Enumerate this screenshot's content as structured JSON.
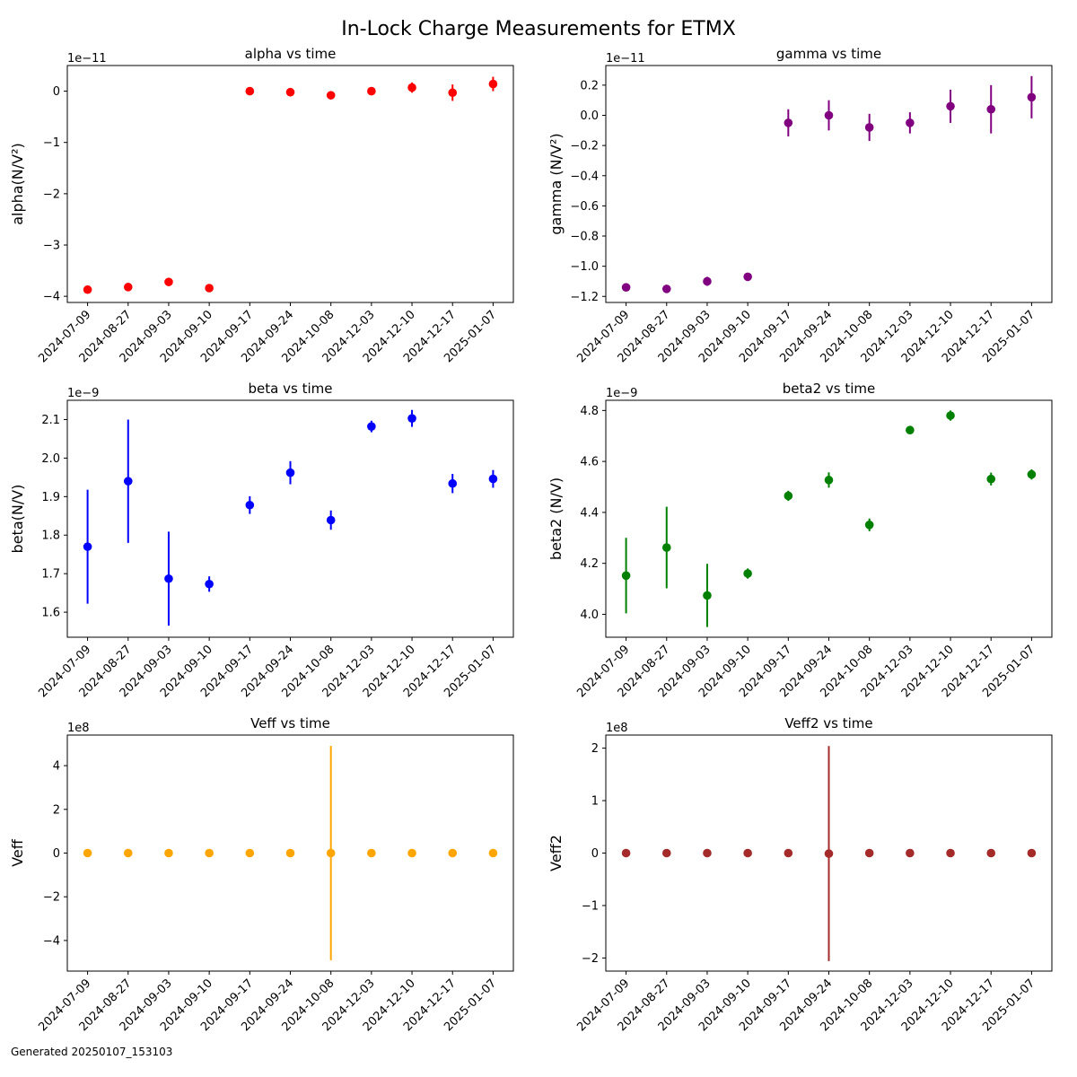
{
  "figure": {
    "title": "In-Lock Charge Measurements for ETMX",
    "footer": "Generated 20250107_153103"
  },
  "chart_data": [
    {
      "type": "scatter",
      "title": "alpha vs time",
      "xlabel": "",
      "ylabel": "alpha(N/V²)",
      "offset_text": "1e−11",
      "scale": 1e-11,
      "color": "#ff0000",
      "categories": [
        "2024-07-09",
        "2024-08-27",
        "2024-09-03",
        "2024-09-10",
        "2024-09-17",
        "2024-09-24",
        "2024-10-08",
        "2024-12-03",
        "2024-12-10",
        "2024-12-17",
        "2025-01-07"
      ],
      "ylim": [
        -4.12,
        0.5
      ],
      "yticks": [
        0,
        -1,
        -2,
        -3,
        -4
      ],
      "ytick_labels": [
        "0",
        "−1",
        "−2",
        "−3",
        "−4"
      ],
      "values": [
        -3.87,
        -3.82,
        -3.72,
        -3.84,
        0.0,
        -0.02,
        -0.08,
        0.0,
        0.07,
        -0.03,
        0.14
      ],
      "errors": [
        0.03,
        0.04,
        0.03,
        0.03,
        0.05,
        0.08,
        0.06,
        0.04,
        0.1,
        0.16,
        0.14
      ]
    },
    {
      "type": "scatter",
      "title": "gamma vs time",
      "xlabel": "",
      "ylabel": "gamma (N/V²)",
      "offset_text": "1e−11",
      "scale": 1e-11,
      "color": "#800080",
      "categories": [
        "2024-07-09",
        "2024-08-27",
        "2024-09-03",
        "2024-09-10",
        "2024-09-17",
        "2024-09-24",
        "2024-10-08",
        "2024-12-03",
        "2024-12-10",
        "2024-12-17",
        "2025-01-07"
      ],
      "ylim": [
        -1.24,
        0.33
      ],
      "yticks": [
        0.2,
        0.0,
        -0.2,
        -0.4,
        -0.6,
        -0.8,
        -1.0,
        -1.2
      ],
      "ytick_labels": [
        "0.2",
        "0.0",
        "−0.2",
        "−0.4",
        "−0.6",
        "−0.8",
        "−1.0",
        "−1.2"
      ],
      "values": [
        -1.14,
        -1.15,
        -1.1,
        -1.07,
        -0.05,
        0.0,
        -0.08,
        -0.05,
        0.06,
        0.04,
        0.12
      ],
      "errors": [
        0.02,
        0.02,
        0.03,
        0.02,
        0.09,
        0.1,
        0.09,
        0.07,
        0.11,
        0.16,
        0.14
      ]
    },
    {
      "type": "scatter",
      "title": "beta vs time",
      "xlabel": "",
      "ylabel": "beta(N/V)",
      "offset_text": "1e−9",
      "scale": 1e-09,
      "color": "#0000ff",
      "categories": [
        "2024-07-09",
        "2024-08-27",
        "2024-09-03",
        "2024-09-10",
        "2024-09-17",
        "2024-09-24",
        "2024-10-08",
        "2024-12-03",
        "2024-12-10",
        "2024-12-17",
        "2025-01-07"
      ],
      "ylim": [
        1.535,
        2.15
      ],
      "yticks": [
        1.6,
        1.7,
        1.8,
        1.9,
        2.0,
        2.1
      ],
      "ytick_labels": [
        "1.6",
        "1.7",
        "1.8",
        "1.9",
        "2.0",
        "2.1"
      ],
      "values": [
        1.77,
        1.94,
        1.687,
        1.673,
        1.878,
        1.962,
        1.839,
        2.082,
        2.103,
        1.934,
        1.946
      ],
      "errors": [
        0.148,
        0.16,
        0.122,
        0.02,
        0.023,
        0.03,
        0.025,
        0.015,
        0.022,
        0.025,
        0.023
      ]
    },
    {
      "type": "scatter",
      "title": "beta2 vs time",
      "xlabel": "",
      "ylabel": "beta2 (N/V)",
      "offset_text": "1e−9",
      "scale": 1e-09,
      "color": "#008000",
      "categories": [
        "2024-07-09",
        "2024-08-27",
        "2024-09-03",
        "2024-09-10",
        "2024-09-17",
        "2024-09-24",
        "2024-10-08",
        "2024-12-03",
        "2024-12-10",
        "2024-12-17",
        "2025-01-07"
      ],
      "ylim": [
        3.91,
        4.84
      ],
      "yticks": [
        4.0,
        4.2,
        4.4,
        4.6,
        4.8
      ],
      "ytick_labels": [
        "4.0",
        "4.2",
        "4.4",
        "4.6",
        "4.8"
      ],
      "values": [
        4.152,
        4.262,
        4.074,
        4.16,
        4.465,
        4.527,
        4.351,
        4.723,
        4.78,
        4.531,
        4.549
      ],
      "errors": [
        0.148,
        0.16,
        0.124,
        0.02,
        0.02,
        0.03,
        0.025,
        0.012,
        0.02,
        0.025,
        0.02
      ]
    },
    {
      "type": "scatter",
      "title": "Veff vs time",
      "xlabel": "",
      "ylabel": "Veff",
      "offset_text": "1e8",
      "scale": 100000000,
      "color": "#ffa500",
      "categories": [
        "2024-07-09",
        "2024-08-27",
        "2024-09-03",
        "2024-09-10",
        "2024-09-17",
        "2024-09-24",
        "2024-10-08",
        "2024-12-03",
        "2024-12-10",
        "2024-12-17",
        "2025-01-07"
      ],
      "ylim": [
        -5.4,
        5.4
      ],
      "yticks": [
        4,
        2,
        0,
        -2,
        -4
      ],
      "ytick_labels": [
        "4",
        "2",
        "0",
        "−2",
        "−4"
      ],
      "values": [
        0,
        0,
        0,
        0,
        0,
        0,
        0,
        0,
        0,
        0,
        0
      ],
      "errors": [
        0,
        0,
        0,
        0,
        0,
        0,
        4.9,
        0,
        0,
        0,
        0
      ]
    },
    {
      "type": "scatter",
      "title": "Veff2 vs time",
      "xlabel": "",
      "ylabel": "Veff2",
      "offset_text": "1e8",
      "scale": 100000000,
      "color": "#a52a2a",
      "categories": [
        "2024-07-09",
        "2024-08-27",
        "2024-09-03",
        "2024-09-10",
        "2024-09-17",
        "2024-09-24",
        "2024-10-08",
        "2024-12-03",
        "2024-12-10",
        "2024-12-17",
        "2025-01-07"
      ],
      "ylim": [
        -2.25,
        2.25
      ],
      "yticks": [
        2,
        1,
        0,
        -1,
        -2
      ],
      "ytick_labels": [
        "2",
        "1",
        "0",
        "−1",
        "−2"
      ],
      "values": [
        0,
        0,
        0,
        0,
        0,
        -0.01,
        0,
        0,
        0,
        0,
        0
      ],
      "errors": [
        0,
        0,
        0,
        0,
        0,
        2.05,
        0,
        0,
        0,
        0,
        0
      ]
    }
  ]
}
